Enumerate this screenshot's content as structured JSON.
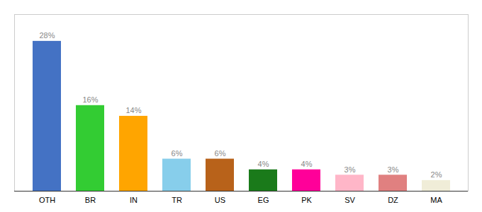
{
  "chart_data": {
    "type": "bar",
    "categories": [
      "OTH",
      "BR",
      "IN",
      "TR",
      "US",
      "EG",
      "PK",
      "SV",
      "DZ",
      "MA"
    ],
    "values": [
      28,
      16,
      14,
      6,
      6,
      4,
      4,
      3,
      3,
      2
    ],
    "value_labels": [
      "28%",
      "16%",
      "14%",
      "6%",
      "6%",
      "4%",
      "4%",
      "3%",
      "3%",
      "2%"
    ],
    "colors": [
      "#4472C4",
      "#33CC33",
      "#FFA500",
      "#87CEEB",
      "#B8621A",
      "#1A7A1A",
      "#FF0099",
      "#FFB6C8",
      "#E08080",
      "#F0EDD8"
    ],
    "ylim": [
      0,
      33
    ],
    "data_labels": true,
    "tick_labels": "x",
    "grid": false
  }
}
